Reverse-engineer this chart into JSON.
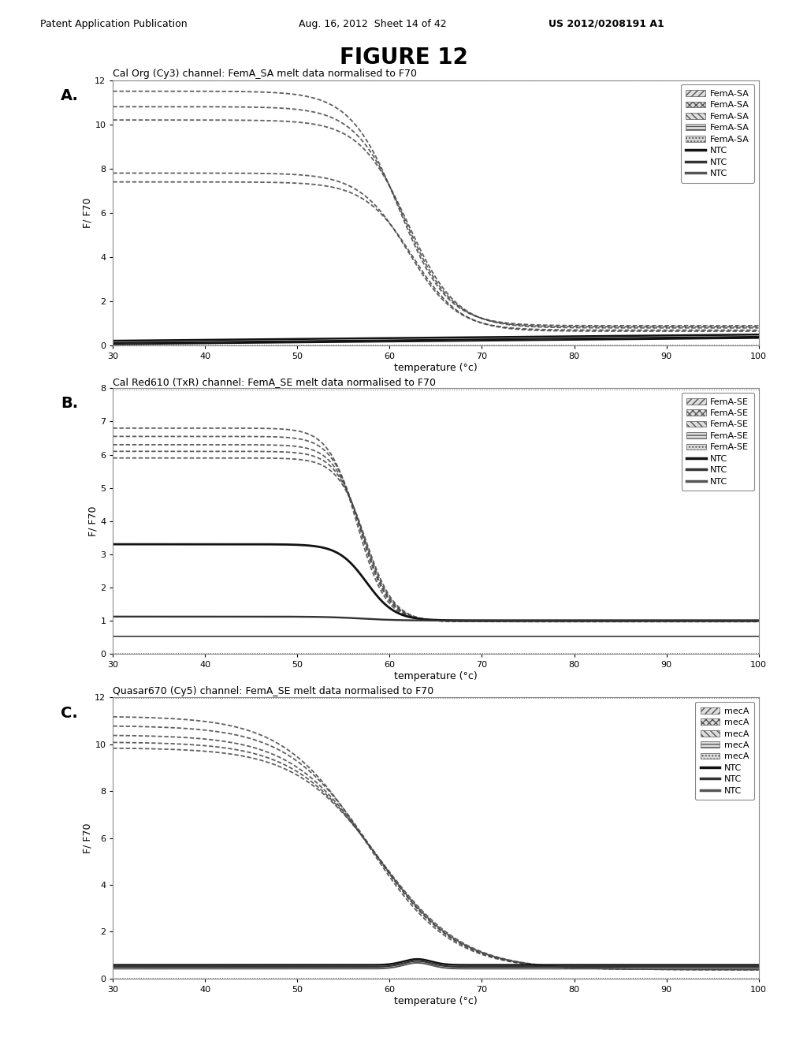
{
  "title": "FIGURE 12",
  "header_left": "Patent Application Publication",
  "header_mid": "Aug. 16, 2012  Sheet 14 of 42",
  "header_right": "US 2012/0208191 A1",
  "panel_A": {
    "label": "A.",
    "title": "Cal Org (Cy3) channel: FemA_SA melt data normalised to F70",
    "ylabel": "F/ F70",
    "xlabel": "temperature (°c)",
    "xlim": [
      30,
      100
    ],
    "ylim": [
      0,
      12
    ],
    "yticks": [
      0,
      2,
      4,
      6,
      8,
      10,
      12
    ],
    "xticks": [
      30,
      40,
      50,
      60,
      70,
      80,
      90,
      100
    ],
    "legend_fema_label": "FemA-SA",
    "legend_ntc_label": "NTC"
  },
  "panel_B": {
    "label": "B.",
    "title": "Cal Red610 (TxR) channel: FemA_SE melt data normalised to F70",
    "ylabel": "F/ F70",
    "xlabel": "temperature (°c)",
    "xlim": [
      30,
      100
    ],
    "ylim": [
      0,
      8
    ],
    "yticks": [
      0,
      1,
      2,
      3,
      4,
      5,
      6,
      7,
      8
    ],
    "xticks": [
      30,
      40,
      50,
      60,
      70,
      80,
      90,
      100
    ],
    "legend_fema_label": "FemA-SE",
    "legend_ntc_label": "NTC"
  },
  "panel_C": {
    "label": "C.",
    "title": "Quasar670 (Cy5) channel: FemA_SE melt data normalised to F70",
    "ylabel": "F/ F70",
    "xlabel": "temperature (°c)",
    "xlim": [
      30,
      100
    ],
    "ylim": [
      0,
      12
    ],
    "yticks": [
      0,
      2,
      4,
      6,
      8,
      10,
      12
    ],
    "xticks": [
      30,
      40,
      50,
      60,
      70,
      80,
      90,
      100
    ],
    "legend_meca_label": "mecA",
    "legend_ntc_label": "NTC"
  }
}
